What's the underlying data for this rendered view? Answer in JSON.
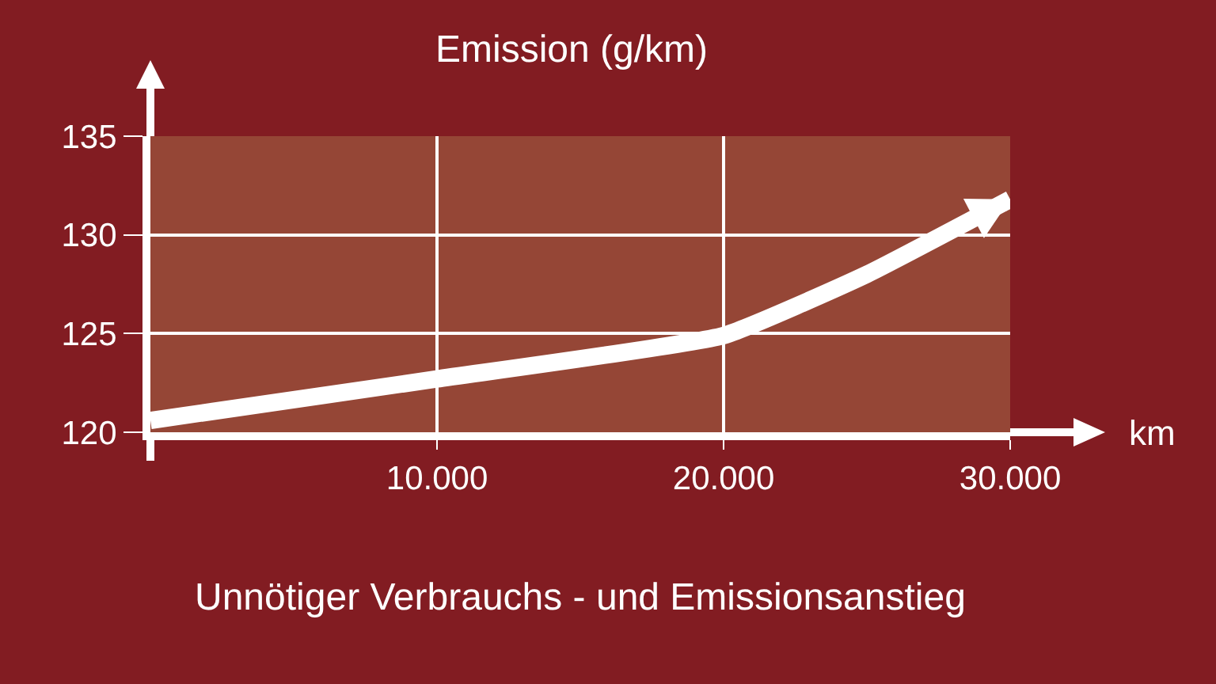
{
  "chart_data": {
    "type": "line",
    "title": "Emission (g/km)",
    "xlabel": "km",
    "x": [
      0,
      10000,
      20000,
      25000,
      30000
    ],
    "series": [
      {
        "color": "#ffffff",
        "values": [
          120.6,
          122.7,
          124.9,
          128.0,
          131.8
        ]
      }
    ],
    "xlim": [
      0,
      30000
    ],
    "ylim": [
      120,
      135
    ],
    "xticks": [
      {
        "value": 10000,
        "label": "10.000"
      },
      {
        "value": 20000,
        "label": "20.000"
      },
      {
        "value": 30000,
        "label": "30.000"
      }
    ],
    "yticks": [
      120,
      125,
      130,
      135
    ],
    "grid": true,
    "marker": "none",
    "line_style": "solid",
    "annotations": [
      "Unnötiger Verbrauchs - und Emissionsanstieg"
    ]
  }
}
